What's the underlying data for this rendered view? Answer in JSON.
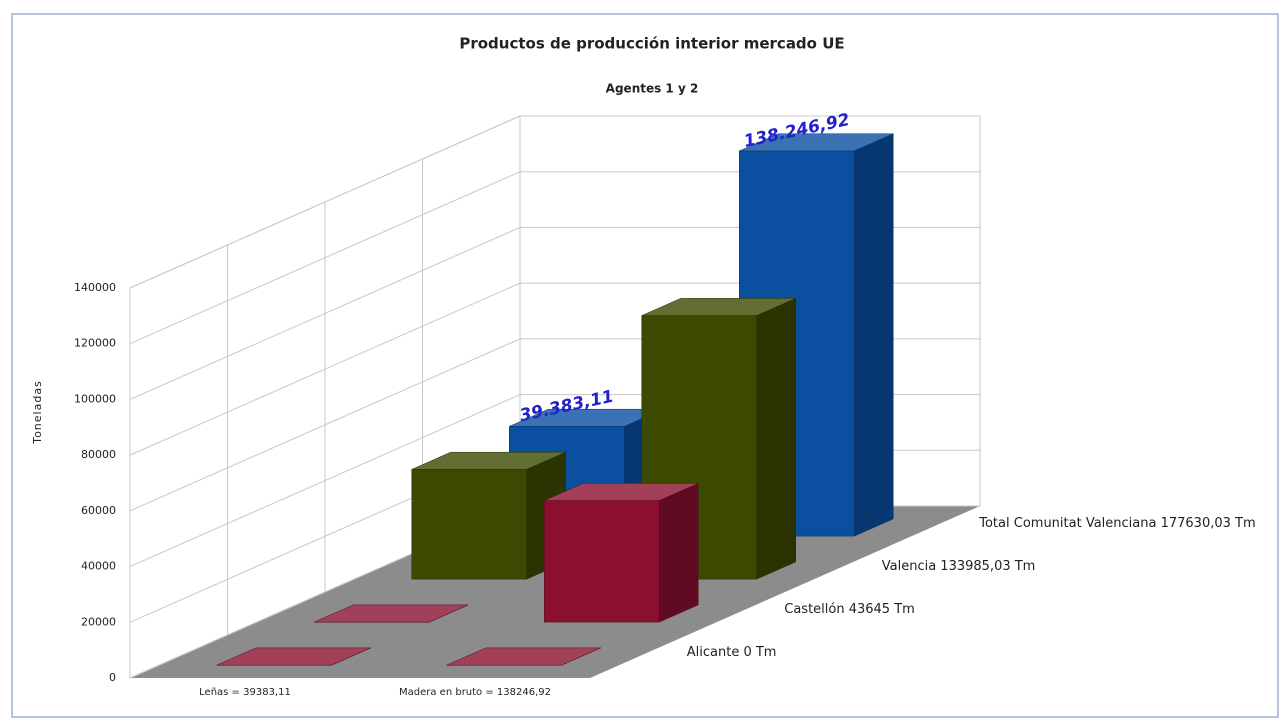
{
  "chart_data": {
    "type": "bar3d",
    "title": "Productos de producción interior mercado UE",
    "subtitle": "Agentes 1 y 2",
    "ylabel": "Toneladas",
    "categories": [
      "Leñas = 39383,11",
      "Madera en bruto = 138246,92"
    ],
    "series": [
      {
        "name": "Alicante  0 Tm",
        "color": "#8b1030",
        "values": [
          0,
          0
        ]
      },
      {
        "name": "Castellón  43645 Tm",
        "color": "#8b1030",
        "values": [
          0,
          43645
        ]
      },
      {
        "name": "Valencia  133985,03 Tm",
        "color": "#3b4a00",
        "values": [
          39383.11,
          94601.92
        ]
      },
      {
        "name": "Total Comunitat Valenciana 177630,03 Tm",
        "color": "#0a4fa0",
        "values": [
          39383.11,
          138246.92
        ],
        "value_labels": [
          "39.383,11",
          "138.246,92"
        ]
      }
    ],
    "ylim": [
      0,
      140000
    ],
    "yticks": [
      0,
      20000,
      40000,
      60000,
      80000,
      100000,
      120000,
      140000
    ],
    "grid": true
  }
}
